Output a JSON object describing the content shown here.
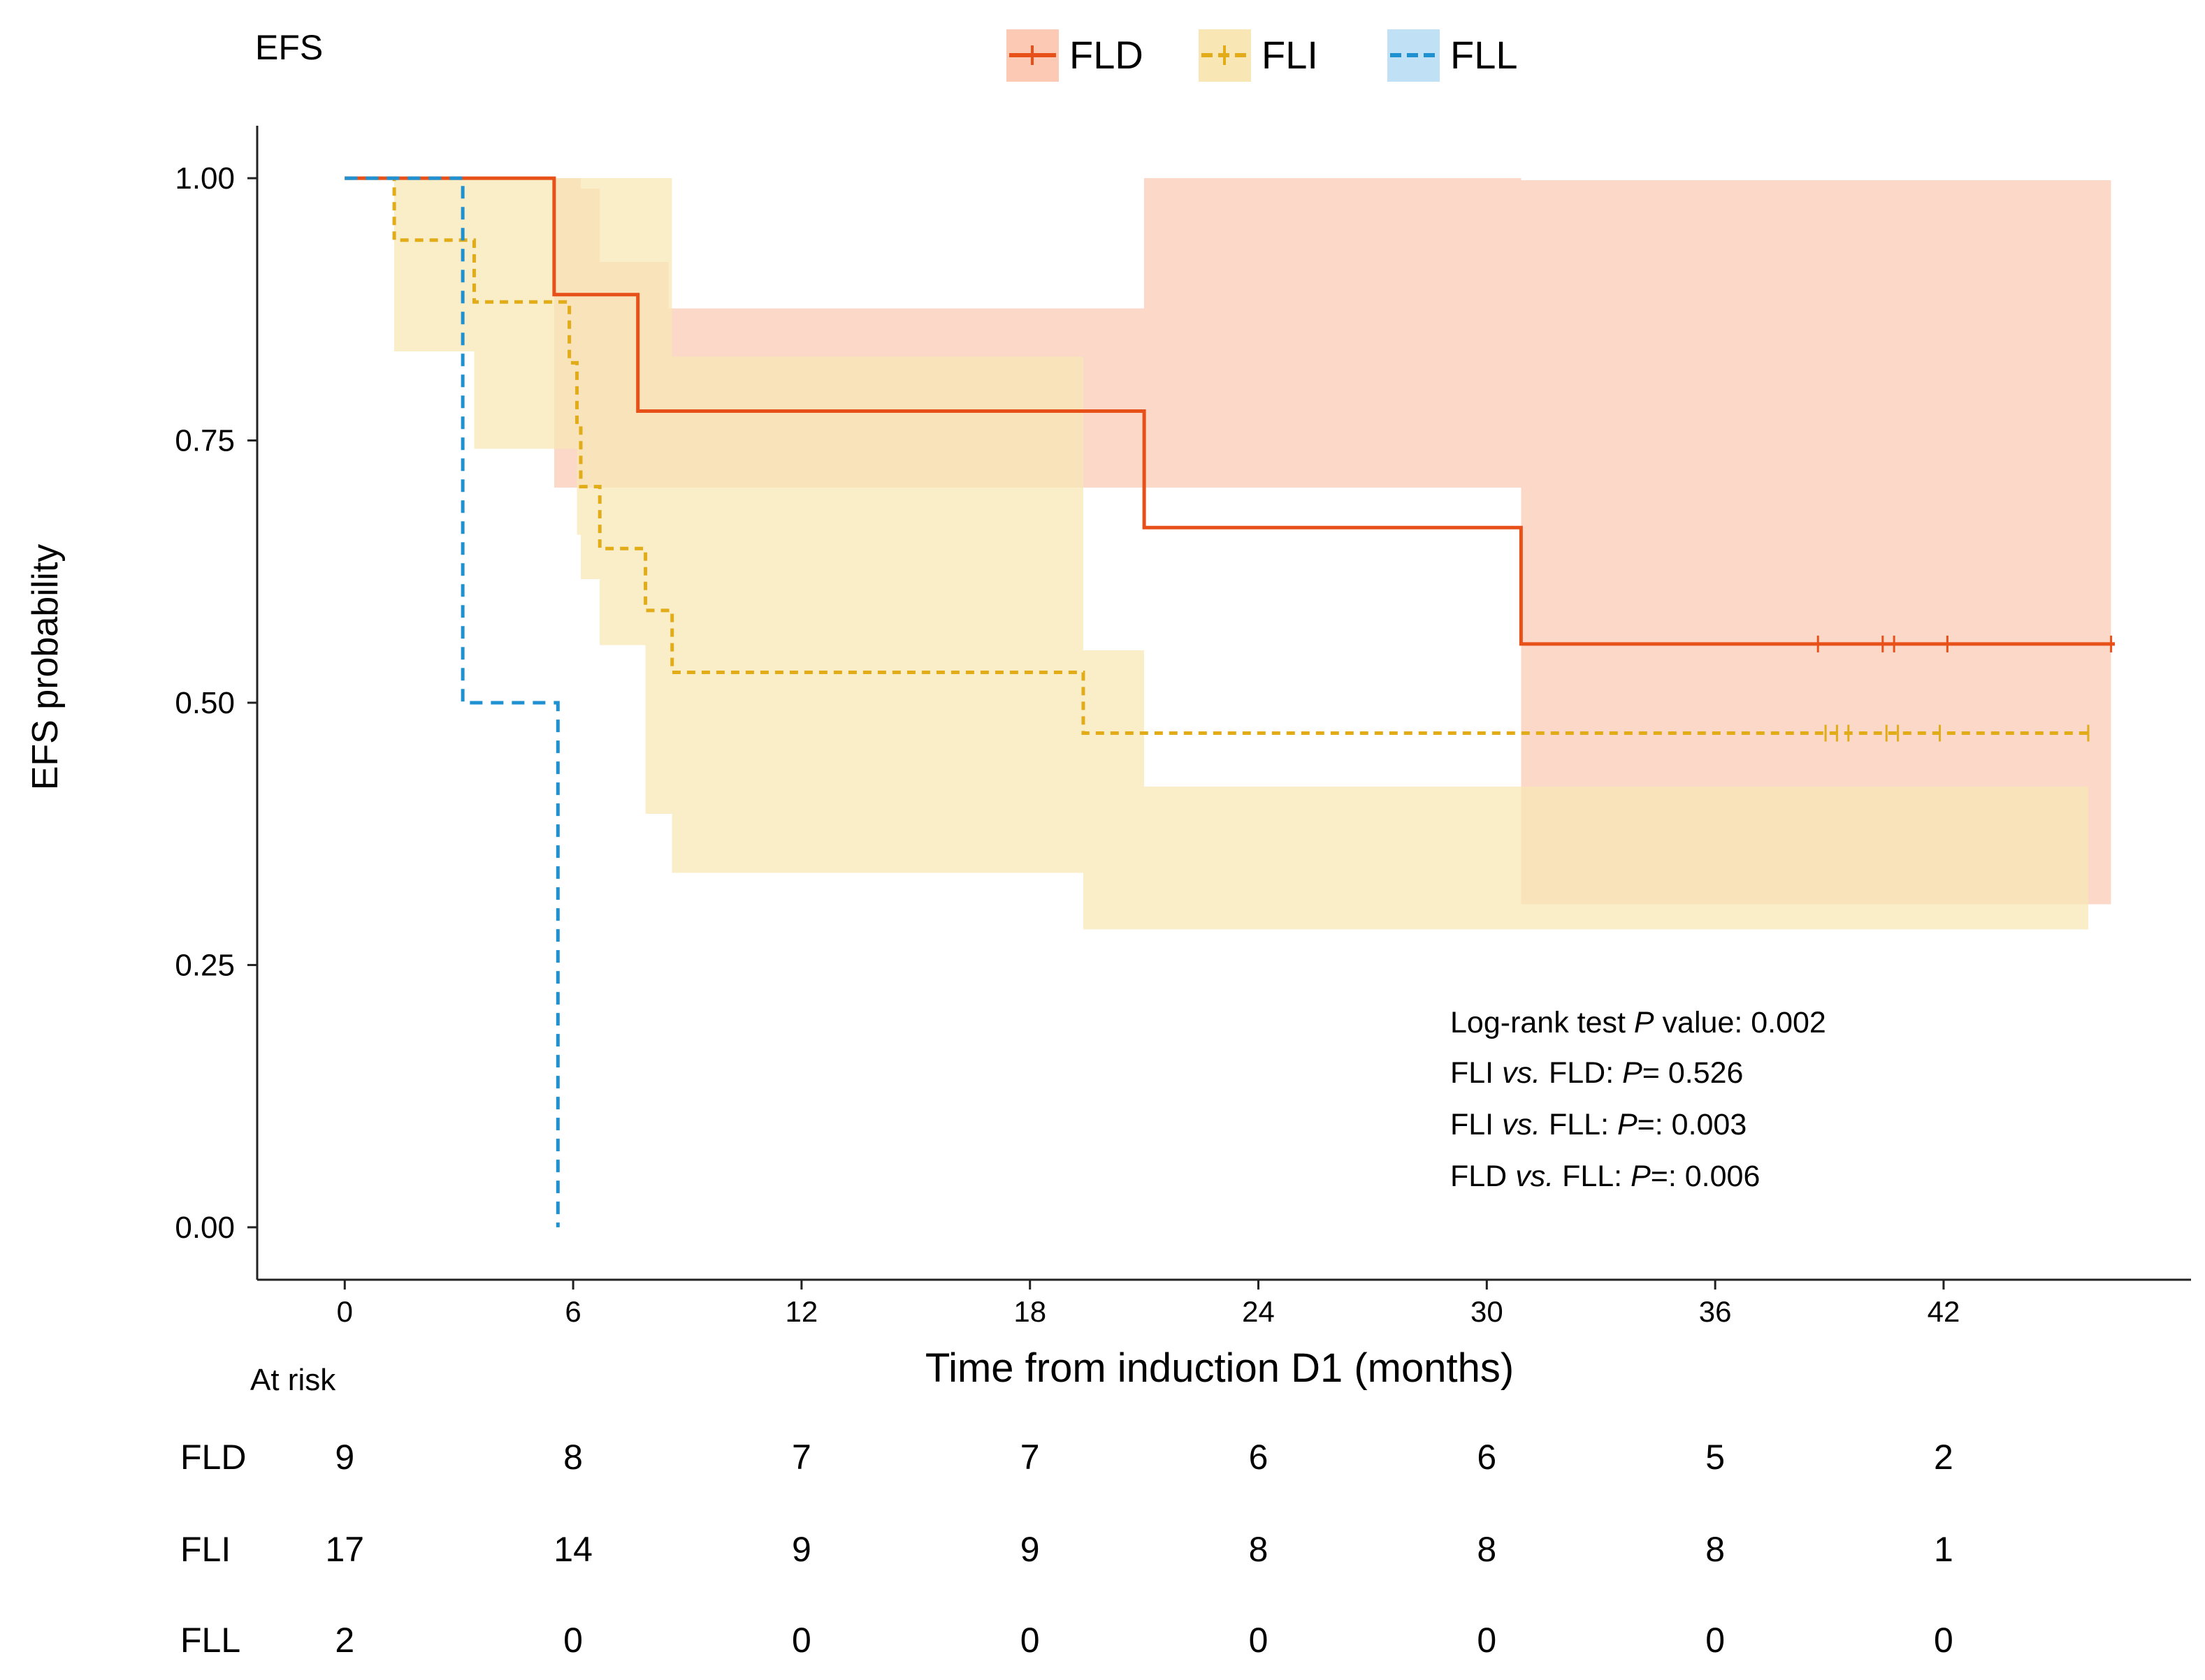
{
  "chart_data": {
    "type": "line",
    "subtype": "kaplan-meier",
    "title": "EFS",
    "xlabel": "Time from induction D1 (months)",
    "ylabel": "EFS probability",
    "xlim": [
      -2.3,
      48.5
    ],
    "ylim": [
      -0.05,
      1.05
    ],
    "xticks": [
      0,
      6,
      12,
      18,
      24,
      30,
      36,
      42
    ],
    "yticks": [
      0.0,
      0.25,
      0.5,
      0.75,
      1.0
    ],
    "ytick_labels": [
      "0.00",
      "0.25",
      "0.50",
      "0.75",
      "1.00"
    ],
    "legend_position": "top-center",
    "series": [
      {
        "name": "FLD",
        "color": "#e8501a",
        "band_color": "#fbc9b4",
        "dash": "solid",
        "steps": [
          [
            0,
            1.0
          ],
          [
            5.5,
            0.889
          ],
          [
            7.7,
            0.778
          ],
          [
            21.0,
            0.667
          ],
          [
            30.9,
            0.556
          ]
        ],
        "end": 46.5,
        "censor": [
          [
            38.7,
            0.556
          ],
          [
            40.4,
            0.556
          ],
          [
            40.7,
            0.556
          ],
          [
            42.1,
            0.556
          ],
          [
            46.4,
            0.556
          ]
        ],
        "ci_lower": [
          [
            0,
            1.0
          ],
          [
            5.5,
            0.705
          ],
          [
            7.7,
            0.705
          ],
          [
            21.0,
            0.705
          ],
          [
            30.9,
            0.308
          ]
        ],
        "ci_upper": [
          [
            0,
            1.0
          ],
          [
            5.5,
            1.0
          ],
          [
            6.2,
            0.99
          ],
          [
            6.7,
            0.92
          ],
          [
            7.7,
            0.92
          ],
          [
            8.5,
            0.876
          ],
          [
            9.0,
            0.876
          ],
          [
            21.0,
            1.0
          ],
          [
            30.9,
            0.998
          ]
        ],
        "ci_end": 46.4
      },
      {
        "name": "FLI",
        "color": "#e2ab18",
        "band_color": "#f8e7b4",
        "dash": "dashed",
        "steps": [
          [
            0,
            1.0
          ],
          [
            1.3,
            0.941
          ],
          [
            3.4,
            0.882
          ],
          [
            5.9,
            0.824
          ],
          [
            6.1,
            0.765
          ],
          [
            6.2,
            0.706
          ],
          [
            6.7,
            0.647
          ],
          [
            7.9,
            0.588
          ],
          [
            8.6,
            0.529
          ],
          [
            19.4,
            0.471
          ]
        ],
        "end": 45.8,
        "censor": [
          [
            38.9,
            0.471
          ],
          [
            39.2,
            0.471
          ],
          [
            39.5,
            0.471
          ],
          [
            40.5,
            0.471
          ],
          [
            40.8,
            0.471
          ],
          [
            41.9,
            0.471
          ],
          [
            45.8,
            0.471
          ]
        ],
        "ci_lower": [
          [
            0,
            1.0
          ],
          [
            1.3,
            0.835
          ],
          [
            3.4,
            0.742
          ],
          [
            6.1,
            0.66
          ],
          [
            6.2,
            0.618
          ],
          [
            6.7,
            0.555
          ],
          [
            7.9,
            0.394
          ],
          [
            8.6,
            0.338
          ],
          [
            19.4,
            0.284
          ]
        ],
        "ci_upper": [
          [
            0,
            1.0
          ],
          [
            1.3,
            1.0
          ],
          [
            8.6,
            0.83
          ],
          [
            19.4,
            0.55
          ],
          [
            21.0,
            0.55
          ],
          [
            21.0,
            0.42
          ]
        ],
        "ci_end": 45.8
      },
      {
        "name": "FLL",
        "color": "#1f90d0",
        "band_color": "#bfe0f5",
        "dash": "longdash",
        "steps": [
          [
            0,
            1.0
          ],
          [
            3.1,
            0.5
          ],
          [
            5.6,
            0.0
          ]
        ],
        "end": 5.6,
        "censor": [],
        "ci_lower": [],
        "ci_upper": [],
        "ci_end": 0
      }
    ],
    "annotations": {
      "logrank": {
        "prefix": "Log-rank test ",
        "p_italic": "P",
        "rest": " value: 0.002"
      },
      "comparisons": [
        {
          "a": "FLI ",
          "vs": "vs.",
          "b": " FLD: ",
          "p": "P",
          "rest": "= 0.526"
        },
        {
          "a": "FLI ",
          "vs": "vs.",
          "b": " FLL: ",
          "p": "P",
          "rest": "=: 0.003"
        },
        {
          "a": "FLD ",
          "vs": "vs.",
          "b": " FLL: ",
          "p": "P",
          "rest": "=: 0.006"
        }
      ]
    },
    "risk_table": {
      "title": "At risk",
      "times": [
        0,
        6,
        12,
        18,
        24,
        30,
        36,
        42
      ],
      "rows": [
        {
          "label": "FLD",
          "values": [
            "9",
            "8",
            "7",
            "7",
            "6",
            "6",
            "5",
            "2"
          ]
        },
        {
          "label": "FLI",
          "values": [
            "17",
            "14",
            "9",
            "9",
            "8",
            "8",
            "8",
            "1"
          ]
        },
        {
          "label": "FLL",
          "values": [
            "2",
            "0",
            "0",
            "0",
            "0",
            "0",
            "0",
            "0"
          ]
        }
      ]
    }
  }
}
